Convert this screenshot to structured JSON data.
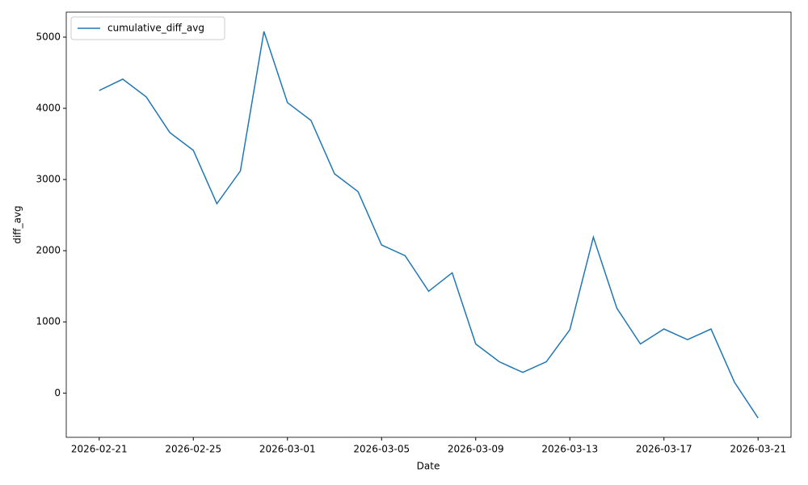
{
  "chart_data": {
    "type": "line",
    "x_label": "Date",
    "y_label": "diff_avg",
    "x": [
      "2026-02-21",
      "2026-02-22",
      "2026-02-23",
      "2026-02-24",
      "2026-02-25",
      "2026-02-26",
      "2026-02-27",
      "2026-02-28",
      "2026-03-01",
      "2026-03-02",
      "2026-03-03",
      "2026-03-04",
      "2026-03-05",
      "2026-03-06",
      "2026-03-07",
      "2026-03-08",
      "2026-03-09",
      "2026-03-10",
      "2026-03-11",
      "2026-03-12",
      "2026-03-13",
      "2026-03-14",
      "2026-03-15",
      "2026-03-16",
      "2026-03-17",
      "2026-03-18",
      "2026-03-19",
      "2026-03-20",
      "2026-03-21"
    ],
    "series": [
      {
        "name": "cumulative_diff_avg",
        "color": "#1f77b4",
        "values": [
          4250,
          4410,
          4160,
          3660,
          3410,
          2660,
          3120,
          5080,
          4080,
          3830,
          3080,
          2830,
          2080,
          1930,
          1430,
          1690,
          690,
          440,
          290,
          440,
          890,
          2190,
          1190,
          690,
          900,
          750,
          900,
          150,
          -350
        ]
      }
    ],
    "xlim": [
      "2026-02-19T14:24",
      "2026-03-22T09:36"
    ],
    "xticks": [
      "2026-02-21",
      "2026-02-25",
      "2026-03-01",
      "2026-03-05",
      "2026-03-09",
      "2026-03-13",
      "2026-03-17",
      "2026-03-21"
    ],
    "ylim": [
      -621.5,
      5351.5
    ],
    "yticks": [
      0,
      1000,
      2000,
      3000,
      4000,
      5000
    ],
    "legend": "upper left",
    "grid": false
  }
}
